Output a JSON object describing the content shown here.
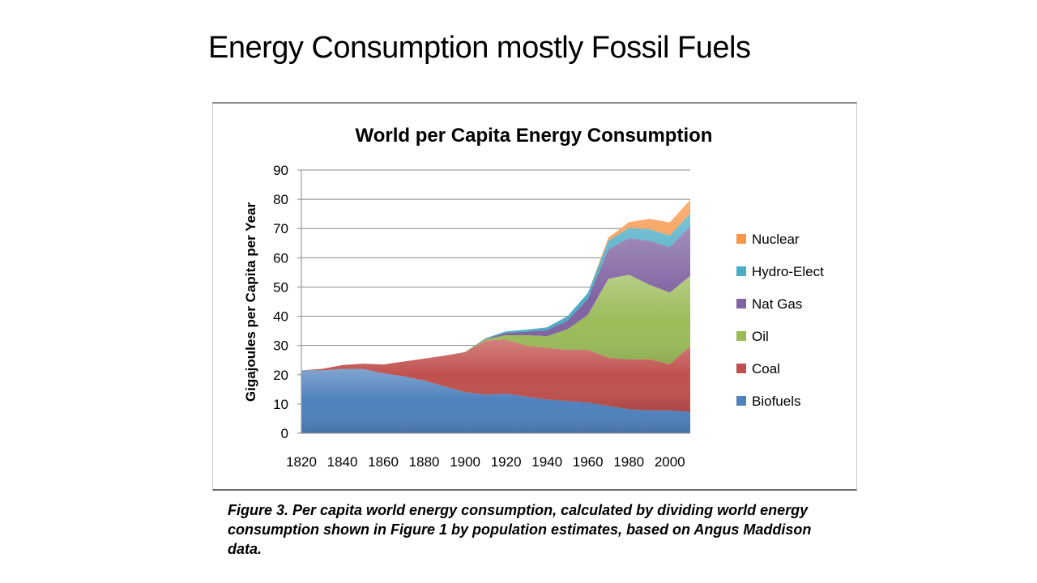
{
  "slide": {
    "title": "Energy Consumption mostly Fossil Fuels",
    "caption": "Figure 3. Per capita world energy consumption, calculated by dividing world energy consumption shown in Figure 1 by population estimates, based on Angus Maddison data."
  },
  "chart_data": {
    "type": "area",
    "stacked": true,
    "title": "World per Capita Energy Consumption",
    "xlabel": "",
    "ylabel": "Gigajoules per Capita per Year",
    "xlim": [
      1820,
      2010
    ],
    "ylim": [
      0,
      90
    ],
    "x_ticks": [
      1820,
      1840,
      1860,
      1880,
      1900,
      1920,
      1940,
      1960,
      1980,
      2000
    ],
    "y_ticks": [
      0,
      10,
      20,
      30,
      40,
      50,
      60,
      70,
      80,
      90
    ],
    "grid": "horizontal",
    "legend_position": "right",
    "x": [
      1820,
      1830,
      1840,
      1850,
      1860,
      1870,
      1880,
      1890,
      1900,
      1910,
      1920,
      1930,
      1940,
      1950,
      1960,
      1970,
      1980,
      1990,
      2000,
      2010
    ],
    "series": [
      {
        "name": "Biofuels",
        "color": "#4f81bd",
        "values": [
          21.5,
          21.5,
          22,
          22,
          20.5,
          19.5,
          18,
          16,
          14,
          13.2,
          13.5,
          12.5,
          11.5,
          11,
          10.5,
          9.3,
          8.2,
          7.8,
          7.8,
          7.3
        ]
      },
      {
        "name": "Coal",
        "color": "#c0504d",
        "values": [
          0,
          0.5,
          1.3,
          1.8,
          3,
          5,
          7.5,
          10.5,
          13.7,
          18.5,
          18.5,
          17.5,
          17.7,
          17.5,
          18,
          16.5,
          17,
          17.5,
          15.8,
          22.5
        ]
      },
      {
        "name": "Oil",
        "color": "#9bbb59",
        "values": [
          0,
          0,
          0,
          0,
          0,
          0,
          0,
          0,
          0.1,
          0.5,
          1.5,
          3.5,
          4,
          7,
          12,
          27,
          29,
          25.5,
          24.5,
          24
        ]
      },
      {
        "name": "Nat Gas",
        "color": "#8064a2",
        "values": [
          0,
          0,
          0,
          0,
          0,
          0,
          0,
          0,
          0,
          0.1,
          0.8,
          1.2,
          2,
          3,
          5.5,
          10,
          12.5,
          15,
          15.5,
          17
        ]
      },
      {
        "name": "Hydro-Elect",
        "color": "#4bacc6",
        "values": [
          0,
          0,
          0,
          0,
          0,
          0,
          0,
          0,
          0,
          0.2,
          0.5,
          0.7,
          1,
          1.5,
          2,
          3,
          3.5,
          4,
          4,
          4.5
        ]
      },
      {
        "name": "Nuclear",
        "color": "#f79646",
        "values": [
          0,
          0,
          0,
          0,
          0,
          0,
          0,
          0,
          0,
          0,
          0,
          0,
          0,
          0,
          0,
          1,
          2,
          3.5,
          4.5,
          4.5
        ]
      }
    ]
  }
}
